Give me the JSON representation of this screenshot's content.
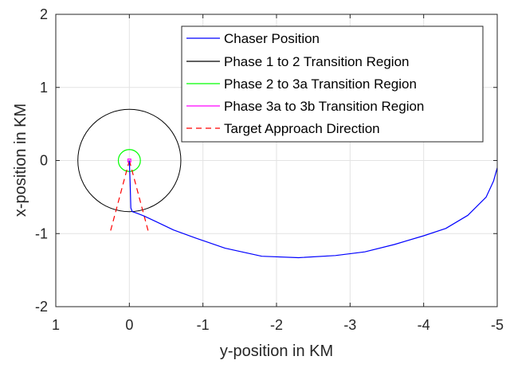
{
  "chart_data": {
    "type": "line",
    "title": "",
    "xlabel": "y-position in KM",
    "ylabel": "x-position in KM",
    "xlim": [
      1,
      -5
    ],
    "ylim": [
      -2,
      2
    ],
    "x_reversed": true,
    "grid": true,
    "legend_position": "top-right",
    "xticks": [
      {
        "value": 1,
        "label": "1"
      },
      {
        "value": 0,
        "label": "0"
      },
      {
        "value": -1,
        "label": "-1"
      },
      {
        "value": -2,
        "label": "-2"
      },
      {
        "value": -3,
        "label": "-3"
      },
      {
        "value": -4,
        "label": "-4"
      },
      {
        "value": -5,
        "label": "-5"
      }
    ],
    "yticks": [
      {
        "value": 2,
        "label": "2"
      },
      {
        "value": 1,
        "label": "1"
      },
      {
        "value": 0,
        "label": "0"
      },
      {
        "value": -1,
        "label": "-1"
      },
      {
        "value": -2,
        "label": "-2"
      }
    ],
    "series": [
      {
        "name": "Chaser Position",
        "color": "#0000ff",
        "style": "solid",
        "x": [
          -5.0,
          -4.95,
          -4.85,
          -4.6,
          -4.3,
          -4.0,
          -3.6,
          -3.2,
          -2.8,
          -2.3,
          -1.8,
          -1.3,
          -0.9,
          -0.6,
          -0.35,
          -0.2,
          -0.1,
          -0.04,
          -0.02,
          -0.01,
          0.0
        ],
        "y": [
          -0.1,
          -0.28,
          -0.5,
          -0.75,
          -0.93,
          -1.03,
          -1.15,
          -1.25,
          -1.3,
          -1.33,
          -1.31,
          -1.2,
          -1.06,
          -0.95,
          -0.83,
          -0.76,
          -0.72,
          -0.7,
          -0.65,
          -0.3,
          0.0
        ]
      },
      {
        "name": "Phase 1 to 2 Transition Region",
        "color": "#000000",
        "style": "solid",
        "shape": "circle",
        "center": [
          0,
          0
        ],
        "radius": 0.7
      },
      {
        "name": "Phase 2 to 3a Transition Region",
        "color": "#00ff00",
        "style": "solid",
        "shape": "circle",
        "center": [
          0,
          0
        ],
        "radius": 0.15
      },
      {
        "name": "Phase 3a to 3b Transition Region",
        "color": "#ff00ff",
        "style": "solid",
        "shape": "square",
        "center": [
          0,
          0
        ],
        "half_width": 0.02
      },
      {
        "name": "Target Approach Direction",
        "color": "#ff0000",
        "style": "dashed",
        "lines": [
          {
            "x": [
              0,
              0.26
            ],
            "y": [
              0,
              -0.98
            ]
          },
          {
            "x": [
              0,
              -0.26
            ],
            "y": [
              0,
              -0.98
            ]
          }
        ]
      }
    ]
  }
}
